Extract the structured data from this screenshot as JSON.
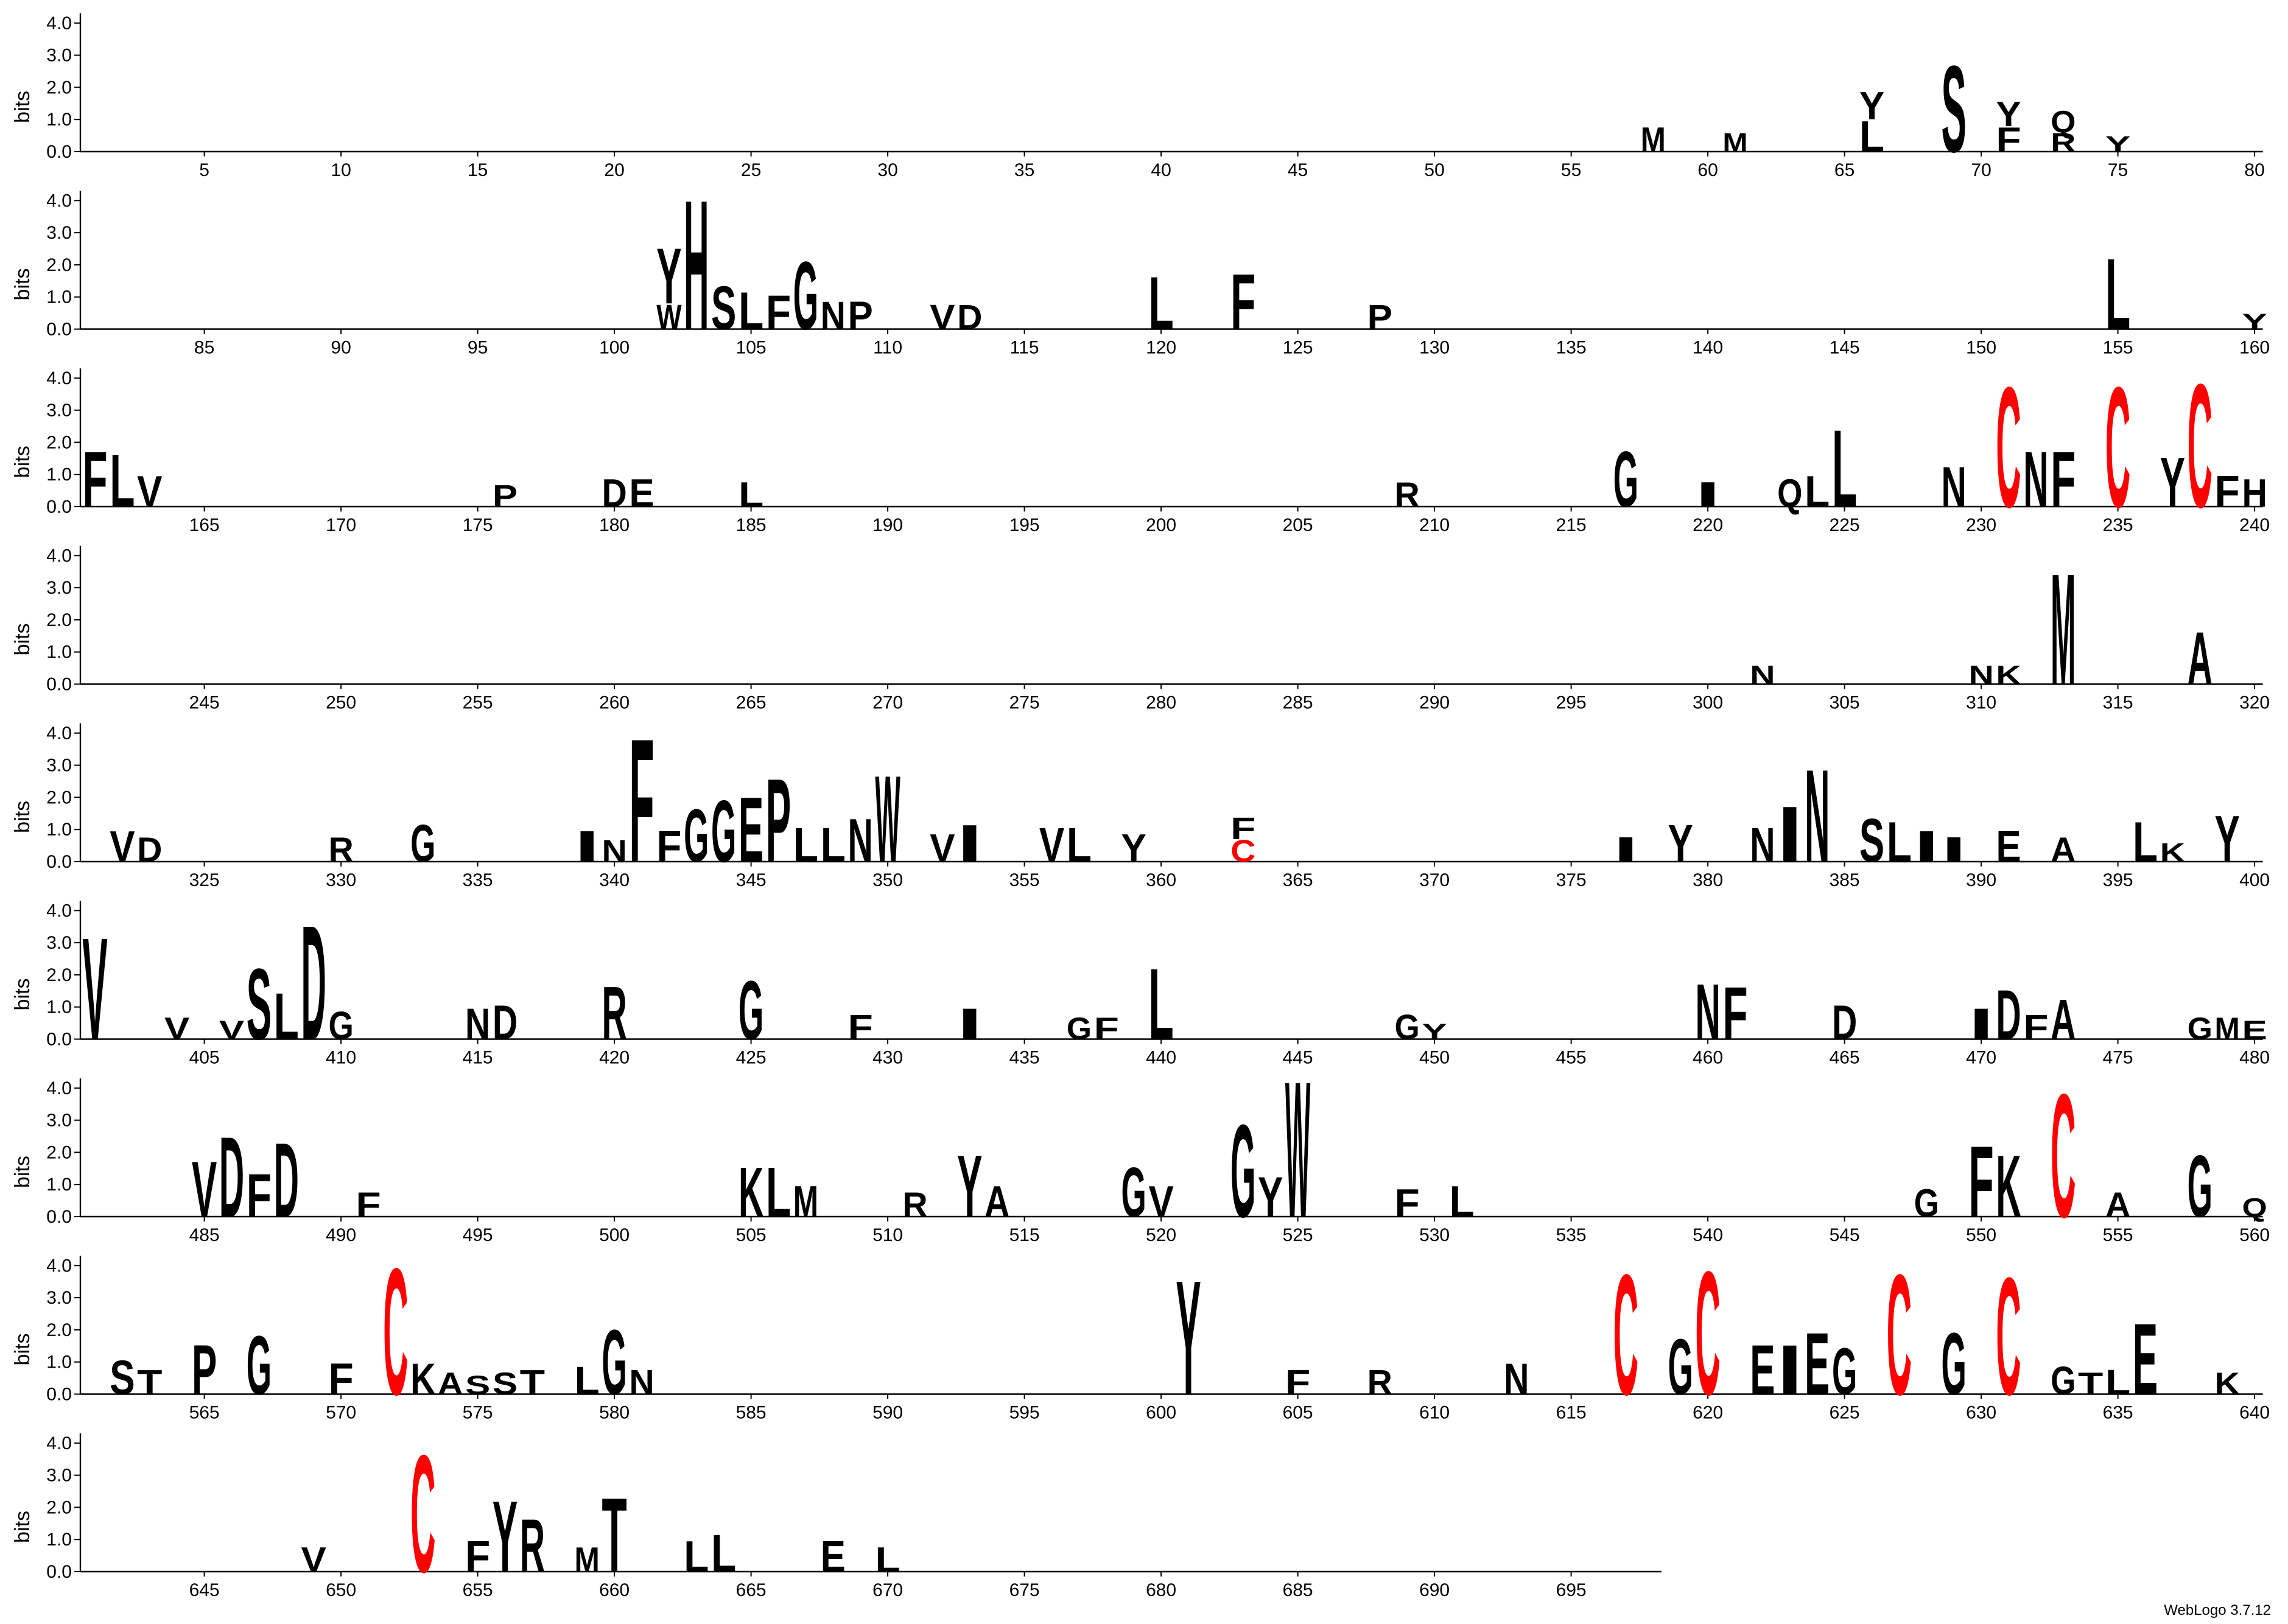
{
  "chart_data": {
    "type": "logo",
    "ylabel": "bits",
    "credit": "WebLogo 3.7.12",
    "ylim": [
      0,
      4.3
    ],
    "yticks": [
      {
        "value": 0,
        "label": "0.0"
      },
      {
        "value": 1,
        "label": "1.0"
      },
      {
        "value": 2,
        "label": "2.0"
      },
      {
        "value": 3,
        "label": "3.0"
      },
      {
        "value": 4,
        "label": "4.0"
      }
    ],
    "color": "#000000",
    "color_scheme": {
      "C": "#ff0000"
    },
    "rows": [
      {
        "start": 1,
        "end": 80,
        "xticks": [
          5,
          10,
          15,
          20,
          25,
          30,
          35,
          40,
          45,
          50,
          55,
          60,
          65,
          70,
          75,
          80
        ]
      },
      {
        "start": 81,
        "end": 160,
        "xticks": [
          85,
          90,
          95,
          100,
          105,
          110,
          115,
          120,
          125,
          130,
          135,
          140,
          145,
          150,
          155,
          160
        ]
      },
      {
        "start": 161,
        "end": 240,
        "xticks": [
          165,
          170,
          175,
          180,
          185,
          190,
          195,
          200,
          205,
          210,
          215,
          220,
          225,
          230,
          235,
          240
        ]
      },
      {
        "start": 241,
        "end": 320,
        "xticks": [
          245,
          250,
          255,
          260,
          265,
          270,
          275,
          280,
          285,
          290,
          295,
          300,
          305,
          310,
          315,
          320
        ]
      },
      {
        "start": 321,
        "end": 400,
        "xticks": [
          325,
          330,
          335,
          340,
          345,
          350,
          355,
          360,
          365,
          370,
          375,
          380,
          385,
          390,
          395,
          400
        ]
      },
      {
        "start": 401,
        "end": 480,
        "xticks": [
          405,
          410,
          415,
          420,
          425,
          430,
          435,
          440,
          445,
          450,
          455,
          460,
          465,
          470,
          475,
          480
        ]
      },
      {
        "start": 481,
        "end": 560,
        "xticks": [
          485,
          490,
          495,
          500,
          505,
          510,
          515,
          520,
          525,
          530,
          535,
          540,
          545,
          550,
          555,
          560
        ]
      },
      {
        "start": 561,
        "end": 640,
        "xticks": [
          565,
          570,
          575,
          580,
          585,
          590,
          595,
          600,
          605,
          610,
          615,
          620,
          625,
          630,
          635,
          640
        ]
      },
      {
        "start": 641,
        "end": 698,
        "xticks": [
          645,
          650,
          655,
          660,
          665,
          670,
          675,
          680,
          685,
          690,
          695
        ]
      }
    ],
    "letters": [
      {
        "pos": 58,
        "letter": "M",
        "bits": 0.8
      },
      {
        "pos": 61,
        "letter": "M",
        "bits": 0.6
      },
      {
        "pos": 66,
        "letter": "L",
        "bits": 1.0
      },
      {
        "pos": 66,
        "letter": "Y",
        "bits": 0.9
      },
      {
        "pos": 69,
        "letter": "S",
        "bits": 2.8
      },
      {
        "pos": 71,
        "letter": "F",
        "bits": 0.8
      },
      {
        "pos": 71,
        "letter": "Y",
        "bits": 0.8
      },
      {
        "pos": 73,
        "letter": "R",
        "bits": 0.6
      },
      {
        "pos": 73,
        "letter": "Q",
        "bits": 0.7
      },
      {
        "pos": 75,
        "letter": "Y",
        "bits": 0.5
      },
      {
        "pos": 102,
        "letter": "W",
        "bits": 0.8
      },
      {
        "pos": 102,
        "letter": "Y",
        "bits": 1.8
      },
      {
        "pos": 103,
        "letter": "H",
        "bits": 4.2
      },
      {
        "pos": 104,
        "letter": "S",
        "bits": 1.4
      },
      {
        "pos": 105,
        "letter": "L",
        "bits": 1.2
      },
      {
        "pos": 106,
        "letter": "F",
        "bits": 1.1
      },
      {
        "pos": 107,
        "letter": "G",
        "bits": 2.2
      },
      {
        "pos": 108,
        "letter": "N",
        "bits": 0.9
      },
      {
        "pos": 109,
        "letter": "P",
        "bits": 0.9
      },
      {
        "pos": 112,
        "letter": "V",
        "bits": 0.8
      },
      {
        "pos": 113,
        "letter": "D",
        "bits": 0.8
      },
      {
        "pos": 120,
        "letter": "L",
        "bits": 1.7
      },
      {
        "pos": 123,
        "letter": "F",
        "bits": 1.8
      },
      {
        "pos": 128,
        "letter": "P",
        "bits": 0.8
      },
      {
        "pos": 155,
        "letter": "L",
        "bits": 2.3
      },
      {
        "pos": 160,
        "letter": "Y",
        "bits": 0.5
      },
      {
        "pos": 161,
        "letter": "F",
        "bits": 1.8
      },
      {
        "pos": 162,
        "letter": "L",
        "bits": 1.7
      },
      {
        "pos": 163,
        "letter": "V",
        "bits": 1.0
      },
      {
        "pos": 176,
        "letter": "P",
        "bits": 0.7
      },
      {
        "pos": 180,
        "letter": "D",
        "bits": 0.9
      },
      {
        "pos": 181,
        "letter": "E",
        "bits": 0.9
      },
      {
        "pos": 185,
        "letter": "L",
        "bits": 0.8
      },
      {
        "pos": 209,
        "letter": "R",
        "bits": 0.8
      },
      {
        "pos": 217,
        "letter": "G",
        "bits": 1.8
      },
      {
        "pos": 220,
        "letter": "I",
        "bits": 0.8
      },
      {
        "pos": 223,
        "letter": "Q",
        "bits": 0.9
      },
      {
        "pos": 224,
        "letter": "L",
        "bits": 1.0
      },
      {
        "pos": 225,
        "letter": "L",
        "bits": 2.5
      },
      {
        "pos": 229,
        "letter": "N",
        "bits": 1.3
      },
      {
        "pos": 231,
        "letter": "C",
        "bits": 3.9
      },
      {
        "pos": 232,
        "letter": "N",
        "bits": 1.8
      },
      {
        "pos": 233,
        "letter": "F",
        "bits": 1.8
      },
      {
        "pos": 235,
        "letter": "C",
        "bits": 3.9
      },
      {
        "pos": 237,
        "letter": "Y",
        "bits": 1.6
      },
      {
        "pos": 238,
        "letter": "C",
        "bits": 4.0
      },
      {
        "pos": 239,
        "letter": "F",
        "bits": 1.0
      },
      {
        "pos": 240,
        "letter": "H",
        "bits": 0.9
      },
      {
        "pos": 302,
        "letter": "N",
        "bits": 0.6
      },
      {
        "pos": 310,
        "letter": "N",
        "bits": 0.6
      },
      {
        "pos": 311,
        "letter": "K",
        "bits": 0.6
      },
      {
        "pos": 313,
        "letter": "M",
        "bits": 3.6
      },
      {
        "pos": 318,
        "letter": "A",
        "bits": 1.7
      },
      {
        "pos": 322,
        "letter": "V",
        "bits": 1.0
      },
      {
        "pos": 323,
        "letter": "D",
        "bits": 0.8
      },
      {
        "pos": 330,
        "letter": "R",
        "bits": 0.8
      },
      {
        "pos": 333,
        "letter": "G",
        "bits": 1.2
      },
      {
        "pos": 339,
        "letter": "I",
        "bits": 1.0
      },
      {
        "pos": 340,
        "letter": "N",
        "bits": 0.7
      },
      {
        "pos": 341,
        "letter": "F",
        "bits": 4.0
      },
      {
        "pos": 342,
        "letter": "F",
        "bits": 1.0
      },
      {
        "pos": 343,
        "letter": "G",
        "bits": 1.7
      },
      {
        "pos": 344,
        "letter": "G",
        "bits": 2.0
      },
      {
        "pos": 345,
        "letter": "E",
        "bits": 2.1
      },
      {
        "pos": 346,
        "letter": "P",
        "bits": 2.7
      },
      {
        "pos": 347,
        "letter": "L",
        "bits": 1.1
      },
      {
        "pos": 348,
        "letter": "L",
        "bits": 1.1
      },
      {
        "pos": 349,
        "letter": "N",
        "bits": 1.4
      },
      {
        "pos": 350,
        "letter": "W",
        "bits": 2.8
      },
      {
        "pos": 352,
        "letter": "V",
        "bits": 0.9
      },
      {
        "pos": 353,
        "letter": "I",
        "bits": 1.2
      },
      {
        "pos": 356,
        "letter": "V",
        "bits": 1.1
      },
      {
        "pos": 357,
        "letter": "L",
        "bits": 1.1
      },
      {
        "pos": 359,
        "letter": "Y",
        "bits": 0.9
      },
      {
        "pos": 363,
        "letter": "C",
        "bits": 0.7
      },
      {
        "pos": 363,
        "letter": "F",
        "bits": 0.7
      },
      {
        "pos": 377,
        "letter": "I",
        "bits": 0.8
      },
      {
        "pos": 379,
        "letter": "Y",
        "bits": 1.2
      },
      {
        "pos": 382,
        "letter": "N",
        "bits": 1.1
      },
      {
        "pos": 383,
        "letter": "I",
        "bits": 1.8
      },
      {
        "pos": 384,
        "letter": "N",
        "bits": 3.0
      },
      {
        "pos": 386,
        "letter": "S",
        "bits": 1.4
      },
      {
        "pos": 387,
        "letter": "L",
        "bits": 1.3
      },
      {
        "pos": 388,
        "letter": "I",
        "bits": 1.0
      },
      {
        "pos": 389,
        "letter": "I",
        "bits": 0.8
      },
      {
        "pos": 391,
        "letter": "E",
        "bits": 1.0
      },
      {
        "pos": 393,
        "letter": "A",
        "bits": 0.8
      },
      {
        "pos": 396,
        "letter": "L",
        "bits": 1.3
      },
      {
        "pos": 397,
        "letter": "K",
        "bits": 0.6
      },
      {
        "pos": 399,
        "letter": "Y",
        "bits": 1.5
      },
      {
        "pos": 401,
        "letter": "V",
        "bits": 3.3
      },
      {
        "pos": 404,
        "letter": "V",
        "bits": 0.7
      },
      {
        "pos": 406,
        "letter": "V",
        "bits": 0.6
      },
      {
        "pos": 407,
        "letter": "S",
        "bits": 2.3
      },
      {
        "pos": 408,
        "letter": "L",
        "bits": 1.5
      },
      {
        "pos": 409,
        "letter": "D",
        "bits": 3.7
      },
      {
        "pos": 410,
        "letter": "G",
        "bits": 0.9
      },
      {
        "pos": 415,
        "letter": "N",
        "bits": 1.0
      },
      {
        "pos": 416,
        "letter": "D",
        "bits": 1.1
      },
      {
        "pos": 420,
        "letter": "R",
        "bits": 1.7
      },
      {
        "pos": 425,
        "letter": "G",
        "bits": 1.9
      },
      {
        "pos": 429,
        "letter": "F",
        "bits": 0.8
      },
      {
        "pos": 433,
        "letter": "I",
        "bits": 1.0
      },
      {
        "pos": 437,
        "letter": "G",
        "bits": 0.7
      },
      {
        "pos": 438,
        "letter": "F",
        "bits": 0.7
      },
      {
        "pos": 440,
        "letter": "L",
        "bits": 2.3
      },
      {
        "pos": 449,
        "letter": "G",
        "bits": 0.8
      },
      {
        "pos": 450,
        "letter": "Y",
        "bits": 0.5
      },
      {
        "pos": 460,
        "letter": "N",
        "bits": 1.8
      },
      {
        "pos": 461,
        "letter": "F",
        "bits": 1.7
      },
      {
        "pos": 465,
        "letter": "D",
        "bits": 1.1
      },
      {
        "pos": 470,
        "letter": "I",
        "bits": 1.0
      },
      {
        "pos": 471,
        "letter": "D",
        "bits": 1.6
      },
      {
        "pos": 472,
        "letter": "F",
        "bits": 0.8
      },
      {
        "pos": 473,
        "letter": "A",
        "bits": 1.3
      },
      {
        "pos": 478,
        "letter": "G",
        "bits": 0.7
      },
      {
        "pos": 479,
        "letter": "M",
        "bits": 0.7
      },
      {
        "pos": 480,
        "letter": "E",
        "bits": 0.6
      },
      {
        "pos": 485,
        "letter": "V",
        "bits": 1.8
      },
      {
        "pos": 486,
        "letter": "D",
        "bits": 2.6
      },
      {
        "pos": 487,
        "letter": "F",
        "bits": 1.4
      },
      {
        "pos": 488,
        "letter": "D",
        "bits": 2.4
      },
      {
        "pos": 491,
        "letter": "F",
        "bits": 0.8
      },
      {
        "pos": 505,
        "letter": "K",
        "bits": 1.6
      },
      {
        "pos": 506,
        "letter": "L",
        "bits": 1.6
      },
      {
        "pos": 507,
        "letter": "M",
        "bits": 1.0
      },
      {
        "pos": 511,
        "letter": "R",
        "bits": 0.8
      },
      {
        "pos": 513,
        "letter": "Y",
        "bits": 2.0
      },
      {
        "pos": 514,
        "letter": "A",
        "bits": 1.0
      },
      {
        "pos": 519,
        "letter": "G",
        "bits": 1.6
      },
      {
        "pos": 520,
        "letter": "V",
        "bits": 1.0
      },
      {
        "pos": 523,
        "letter": "G",
        "bits": 3.0
      },
      {
        "pos": 524,
        "letter": "Y",
        "bits": 1.3
      },
      {
        "pos": 525,
        "letter": "W",
        "bits": 4.4
      },
      {
        "pos": 529,
        "letter": "F",
        "bits": 0.9
      },
      {
        "pos": 531,
        "letter": "L",
        "bits": 1.0
      },
      {
        "pos": 548,
        "letter": "G",
        "bits": 0.9
      },
      {
        "pos": 550,
        "letter": "F",
        "bits": 2.3
      },
      {
        "pos": 551,
        "letter": "K",
        "bits": 2.0
      },
      {
        "pos": 553,
        "letter": "C",
        "bits": 4.0
      },
      {
        "pos": 555,
        "letter": "A",
        "bits": 0.8
      },
      {
        "pos": 558,
        "letter": "G",
        "bits": 2.0
      },
      {
        "pos": 560,
        "letter": "Q",
        "bits": 0.6
      },
      {
        "pos": 562,
        "letter": "S",
        "bits": 1.1
      },
      {
        "pos": 563,
        "letter": "T",
        "bits": 0.8
      },
      {
        "pos": 565,
        "letter": "P",
        "bits": 1.6
      },
      {
        "pos": 567,
        "letter": "G",
        "bits": 1.9
      },
      {
        "pos": 570,
        "letter": "F",
        "bits": 1.0
      },
      {
        "pos": 572,
        "letter": "C",
        "bits": 4.1
      },
      {
        "pos": 573,
        "letter": "K",
        "bits": 1.0
      },
      {
        "pos": 574,
        "letter": "A",
        "bits": 0.7
      },
      {
        "pos": 575,
        "letter": "S",
        "bits": 0.6
      },
      {
        "pos": 576,
        "letter": "S",
        "bits": 0.7
      },
      {
        "pos": 577,
        "letter": "T",
        "bits": 0.8
      },
      {
        "pos": 579,
        "letter": "L",
        "bits": 0.9
      },
      {
        "pos": 580,
        "letter": "G",
        "bits": 2.1
      },
      {
        "pos": 581,
        "letter": "N",
        "bits": 0.8
      },
      {
        "pos": 601,
        "letter": "Y",
        "bits": 3.7
      },
      {
        "pos": 605,
        "letter": "F",
        "bits": 0.8
      },
      {
        "pos": 608,
        "letter": "R",
        "bits": 0.8
      },
      {
        "pos": 613,
        "letter": "N",
        "bits": 1.0
      },
      {
        "pos": 617,
        "letter": "C",
        "bits": 3.9
      },
      {
        "pos": 619,
        "letter": "G",
        "bits": 1.8
      },
      {
        "pos": 620,
        "letter": "C",
        "bits": 4.0
      },
      {
        "pos": 622,
        "letter": "E",
        "bits": 1.6
      },
      {
        "pos": 623,
        "letter": "I",
        "bits": 1.6
      },
      {
        "pos": 624,
        "letter": "E",
        "bits": 2.0
      },
      {
        "pos": 625,
        "letter": "G",
        "bits": 1.5
      },
      {
        "pos": 627,
        "letter": "C",
        "bits": 3.9
      },
      {
        "pos": 629,
        "letter": "G",
        "bits": 2.0
      },
      {
        "pos": 631,
        "letter": "C",
        "bits": 3.8
      },
      {
        "pos": 633,
        "letter": "G",
        "bits": 0.9
      },
      {
        "pos": 634,
        "letter": "T",
        "bits": 0.7
      },
      {
        "pos": 635,
        "letter": "L",
        "bits": 0.8
      },
      {
        "pos": 636,
        "letter": "E",
        "bits": 2.3
      },
      {
        "pos": 639,
        "letter": "K",
        "bits": 0.7
      },
      {
        "pos": 649,
        "letter": "V",
        "bits": 0.8
      },
      {
        "pos": 653,
        "letter": "C",
        "bits": 3.8
      },
      {
        "pos": 655,
        "letter": "F",
        "bits": 1.0
      },
      {
        "pos": 656,
        "letter": "Y",
        "bits": 2.3
      },
      {
        "pos": 657,
        "letter": "R",
        "bits": 1.7
      },
      {
        "pos": 659,
        "letter": "M",
        "bits": 0.8
      },
      {
        "pos": 660,
        "letter": "T",
        "bits": 2.4
      },
      {
        "pos": 663,
        "letter": "L",
        "bits": 1.0
      },
      {
        "pos": 664,
        "letter": "L",
        "bits": 1.2
      },
      {
        "pos": 668,
        "letter": "E",
        "bits": 1.0
      },
      {
        "pos": 670,
        "letter": "L",
        "bits": 0.8
      }
    ]
  }
}
